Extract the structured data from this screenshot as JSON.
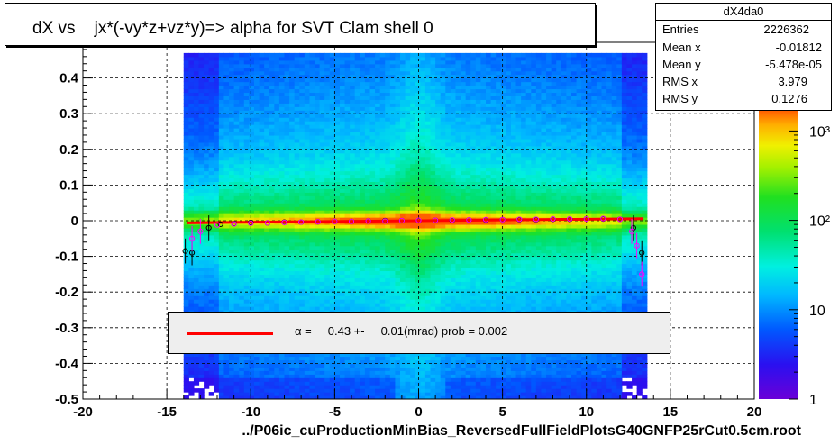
{
  "title": "dX vs    jx*(-vy*z+vz*y)=> alpha for SVT Clam shell 0",
  "stats": {
    "name": "dX4da0",
    "rows": [
      {
        "key": "Entries",
        "value": "2226362"
      },
      {
        "key": "Mean x",
        "value": "-0.01812"
      },
      {
        "key": "Mean y",
        "value": "-5.478e-05"
      },
      {
        "key": "RMS x",
        "value": "3.979"
      },
      {
        "key": "RMS y",
        "value": "0.1276"
      }
    ]
  },
  "legend": {
    "text": "α =     0.43 +-     0.01(mrad) prob = 0.002",
    "line_color": "#ff0000"
  },
  "file_label": "../P06ic_cuProductionMinBias_ReversedFullFieldPlotsG40GNFP25rCut0.5cm.root",
  "chart_data": {
    "type": "heatmap",
    "title": "dX vs    jx*(-vy*z+vz*y)=> alpha for SVT Clam shell 0",
    "xlim": [
      -20,
      20
    ],
    "ylim": [
      -0.5,
      0.5
    ],
    "x_ticks": [
      "-20",
      "-15",
      "-10",
      "-5",
      "0",
      "5",
      "10",
      "15",
      "20"
    ],
    "y_ticks": [
      "-0.5",
      "-0.4",
      "-0.3",
      "-0.2",
      "-0.1",
      "0",
      "0.1",
      "0.2",
      "0.3",
      "0.4"
    ],
    "grid": true,
    "z_scale": "log",
    "z_ticks": [
      "1",
      "10",
      "10²",
      "10³"
    ],
    "fit": {
      "slope": 0.00043,
      "intercept": 0.0,
      "x_range": [
        -13.8,
        13.4
      ],
      "color": "#ff0000"
    },
    "profile_black": {
      "x": [
        -13.9,
        -13.5,
        -12.5,
        -11.8,
        -11.0,
        -10.0,
        -9.0,
        -8.0,
        -7.0,
        -6.0,
        -5.0,
        -4.0,
        -3.0,
        -2.0,
        -1.0,
        0.0,
        1.0,
        2.0,
        3.0,
        4.0,
        5.0,
        6.0,
        7.0,
        8.0,
        9.0,
        10.0,
        11.0,
        12.0,
        12.8,
        13.3
      ],
      "y": [
        -0.085,
        -0.09,
        -0.02,
        -0.01,
        -0.008,
        -0.005,
        -0.006,
        -0.004,
        -0.004,
        -0.003,
        -0.002,
        -0.002,
        -0.001,
        0.0,
        0.0,
        0.0,
        0.001,
        0.001,
        0.002,
        0.002,
        0.003,
        0.003,
        0.003,
        0.004,
        0.004,
        0.005,
        0.005,
        0.004,
        -0.02,
        -0.09
      ],
      "color": "#000000"
    },
    "profile_magenta": {
      "x": [
        -13.5,
        -13.0,
        -12.0,
        -11.0,
        -10.0,
        -9.0,
        -8.0,
        -7.0,
        -6.0,
        -5.0,
        -4.0,
        -3.0,
        -2.0,
        -1.0,
        0.0,
        1.0,
        2.0,
        3.0,
        4.0,
        5.0,
        6.0,
        7.0,
        8.0,
        9.0,
        10.0,
        11.0,
        12.0,
        12.7,
        13.0,
        13.3
      ],
      "y": [
        -0.05,
        -0.03,
        -0.012,
        -0.009,
        -0.007,
        -0.006,
        -0.005,
        -0.004,
        -0.003,
        -0.002,
        -0.002,
        -0.001,
        -0.001,
        0.0,
        0.001,
        0.001,
        0.002,
        0.002,
        0.003,
        0.003,
        0.004,
        0.004,
        0.005,
        0.005,
        0.005,
        0.006,
        0.004,
        -0.03,
        -0.07,
        -0.15
      ],
      "color": "#ff00ff"
    }
  }
}
